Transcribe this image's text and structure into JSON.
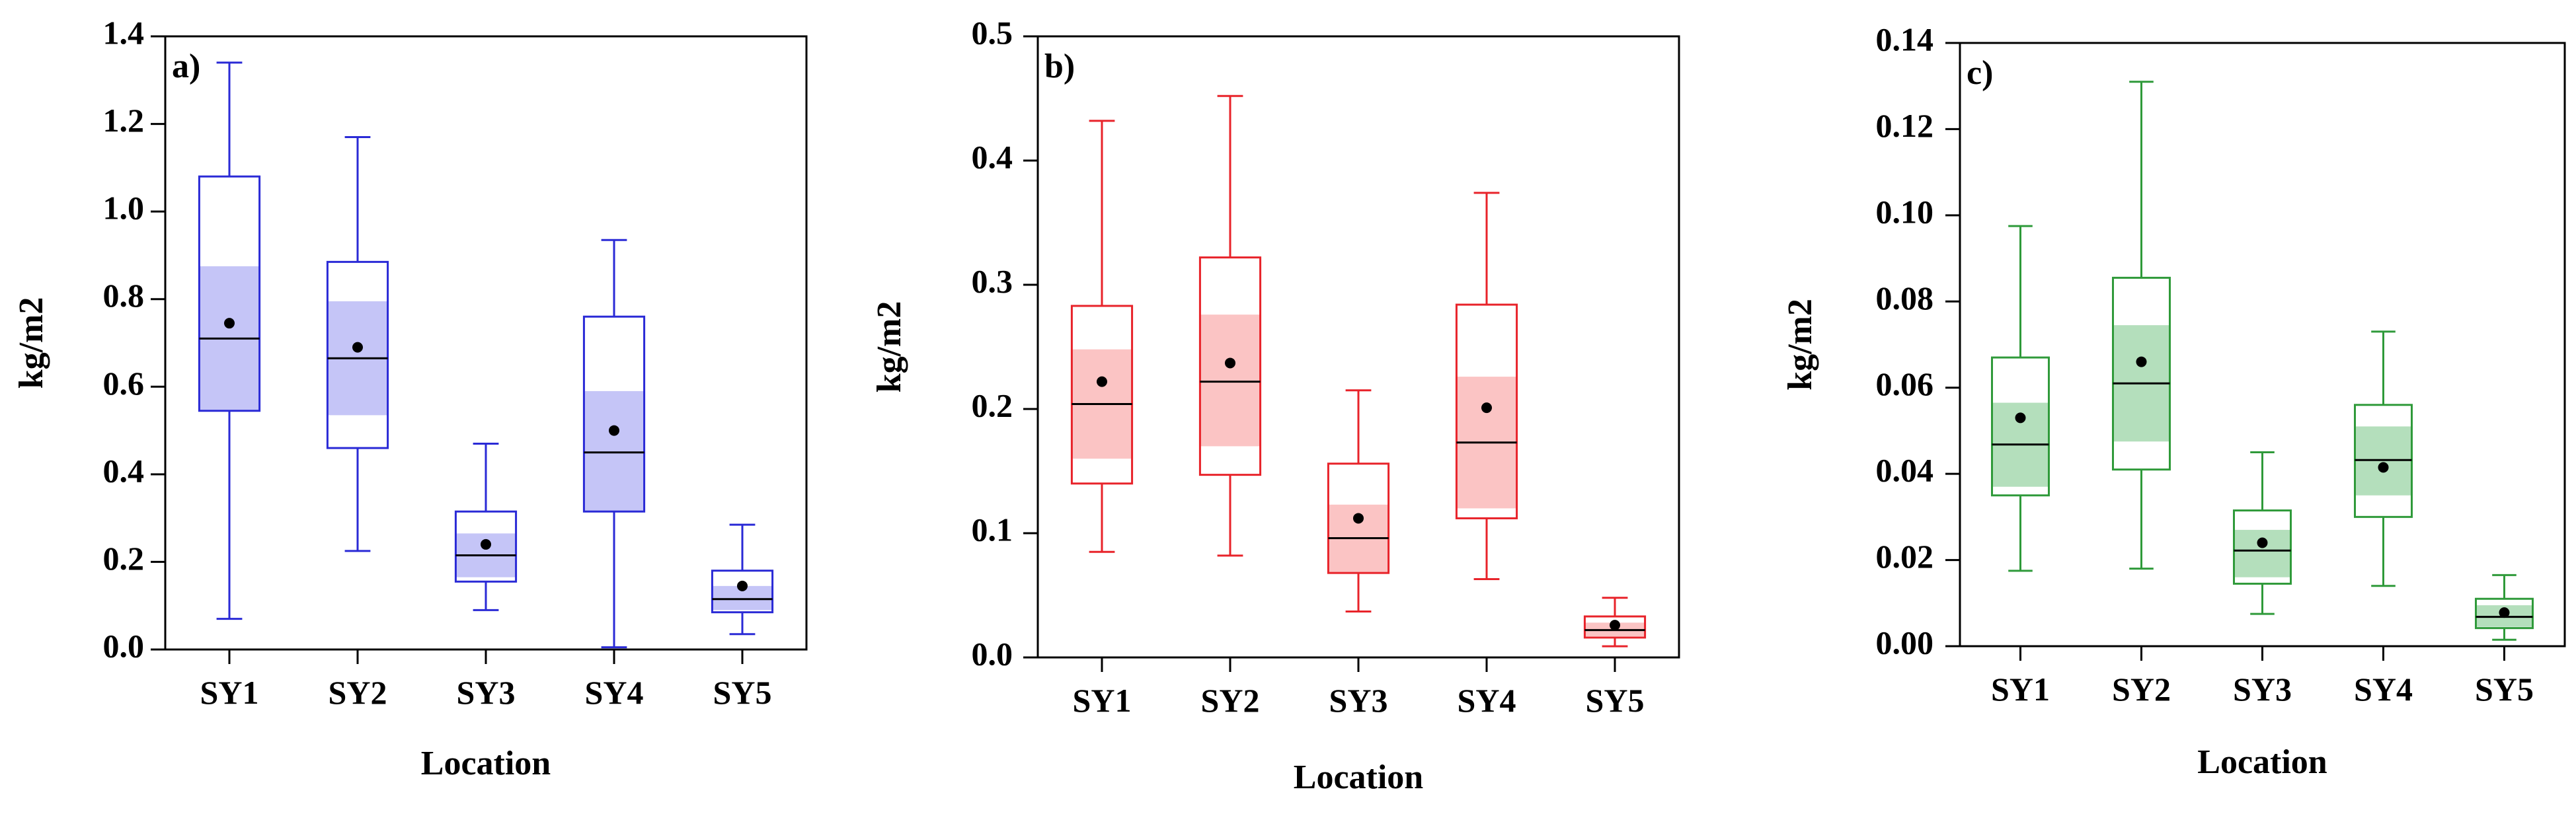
{
  "figure": {
    "panels": [
      {
        "tag": "a)",
        "colors": {
          "stroke": "#2a2ad6",
          "fill": "#c5c5f7"
        },
        "chart_data": {
          "type": "box",
          "categories": [
            "SY1",
            "SY2",
            "SY3",
            "SY4",
            "SY5"
          ],
          "xlabel": "Location",
          "ylabel": "kg/m2",
          "ylim": [
            0,
            1.4
          ],
          "yticks": [
            0.0,
            0.2,
            0.4,
            0.6,
            0.8,
            1.0,
            1.2,
            1.4
          ],
          "ytick_labels": [
            "0.0",
            "0.2",
            "0.4",
            "0.6",
            "0.8",
            "1.0",
            "1.2",
            "1.4"
          ],
          "boxes": [
            {
              "min": 0.07,
              "q1": 0.545,
              "median": 0.71,
              "q3": 1.08,
              "max": 1.34,
              "ci_low": 0.545,
              "ci_high": 0.875,
              "mean": 0.745
            },
            {
              "min": 0.225,
              "q1": 0.46,
              "median": 0.665,
              "q3": 0.885,
              "max": 1.17,
              "ci_low": 0.535,
              "ci_high": 0.795,
              "mean": 0.69
            },
            {
              "min": 0.09,
              "q1": 0.155,
              "median": 0.215,
              "q3": 0.315,
              "max": 0.47,
              "ci_low": 0.165,
              "ci_high": 0.265,
              "mean": 0.24
            },
            {
              "min": 0.005,
              "q1": 0.315,
              "median": 0.45,
              "q3": 0.76,
              "max": 0.935,
              "ci_low": 0.315,
              "ci_high": 0.59,
              "mean": 0.5
            },
            {
              "min": 0.035,
              "q1": 0.085,
              "median": 0.115,
              "q3": 0.18,
              "max": 0.285,
              "ci_low": 0.09,
              "ci_high": 0.145,
              "mean": 0.145
            }
          ],
          "grid": false
        }
      },
      {
        "tag": "b)",
        "colors": {
          "stroke": "#e8232a",
          "fill": "#fbc4c4"
        },
        "chart_data": {
          "type": "box",
          "categories": [
            "SY1",
            "SY2",
            "SY3",
            "SY4",
            "SY5"
          ],
          "xlabel": "Location",
          "ylabel": "kg/m2",
          "ylim": [
            0,
            0.5
          ],
          "yticks": [
            0.0,
            0.1,
            0.2,
            0.3,
            0.4,
            0.5
          ],
          "ytick_labels": [
            "0.0",
            "0.1",
            "0.2",
            "0.3",
            "0.4",
            "0.5"
          ],
          "boxes": [
            {
              "min": 0.085,
              "q1": 0.14,
              "median": 0.204,
              "q3": 0.283,
              "max": 0.432,
              "ci_low": 0.16,
              "ci_high": 0.248,
              "mean": 0.222
            },
            {
              "min": 0.082,
              "q1": 0.147,
              "median": 0.222,
              "q3": 0.322,
              "max": 0.452,
              "ci_low": 0.17,
              "ci_high": 0.276,
              "mean": 0.237
            },
            {
              "min": 0.037,
              "q1": 0.068,
              "median": 0.096,
              "q3": 0.156,
              "max": 0.215,
              "ci_low": 0.068,
              "ci_high": 0.123,
              "mean": 0.112
            },
            {
              "min": 0.063,
              "q1": 0.112,
              "median": 0.173,
              "q3": 0.284,
              "max": 0.374,
              "ci_low": 0.12,
              "ci_high": 0.226,
              "mean": 0.201
            },
            {
              "min": 0.009,
              "q1": 0.016,
              "median": 0.022,
              "q3": 0.033,
              "max": 0.048,
              "ci_low": 0.017,
              "ci_high": 0.028,
              "mean": 0.026
            }
          ],
          "grid": false
        }
      },
      {
        "tag": "c)",
        "colors": {
          "stroke": "#2f9a3a",
          "fill": "#b4dfbc"
        },
        "chart_data": {
          "type": "box",
          "categories": [
            "SY1",
            "SY2",
            "SY3",
            "SY4",
            "SY5"
          ],
          "xlabel": "Location",
          "ylabel": "kg/m2",
          "ylim": [
            0,
            0.14
          ],
          "yticks": [
            0.0,
            0.02,
            0.04,
            0.06,
            0.08,
            0.1,
            0.12,
            0.14
          ],
          "ytick_labels": [
            "0.00",
            "0.02",
            "0.04",
            "0.06",
            "0.08",
            "0.10",
            "0.12",
            "0.14"
          ],
          "boxes": [
            {
              "min": 0.0175,
              "q1": 0.035,
              "median": 0.0468,
              "q3": 0.067,
              "max": 0.0975,
              "ci_low": 0.037,
              "ci_high": 0.0565,
              "mean": 0.053
            },
            {
              "min": 0.018,
              "q1": 0.041,
              "median": 0.061,
              "q3": 0.0855,
              "max": 0.131,
              "ci_low": 0.0475,
              "ci_high": 0.0745,
              "mean": 0.066
            },
            {
              "min": 0.0075,
              "q1": 0.0145,
              "median": 0.0222,
              "q3": 0.0315,
              "max": 0.045,
              "ci_low": 0.016,
              "ci_high": 0.027,
              "mean": 0.024
            },
            {
              "min": 0.014,
              "q1": 0.03,
              "median": 0.0432,
              "q3": 0.056,
              "max": 0.073,
              "ci_low": 0.035,
              "ci_high": 0.051,
              "mean": 0.0415
            },
            {
              "min": 0.0015,
              "q1": 0.0042,
              "median": 0.0068,
              "q3": 0.011,
              "max": 0.0165,
              "ci_low": 0.0045,
              "ci_high": 0.0095,
              "mean": 0.0078
            }
          ],
          "grid": false
        }
      }
    ]
  }
}
